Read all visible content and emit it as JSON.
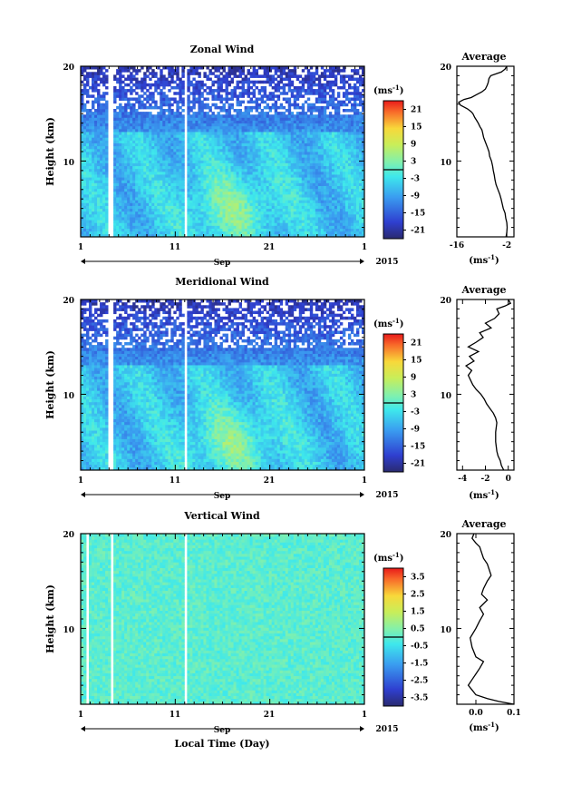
{
  "x_axis": {
    "ticks": [
      "1",
      "11",
      "21",
      "1"
    ],
    "tick_days": [
      1,
      11,
      21,
      31
    ],
    "month": "Sep",
    "year": "2015",
    "label": "Local Time (Day)"
  },
  "y_axis": {
    "label": "Height (km)",
    "range_km": [
      2,
      20
    ],
    "tick_labels": [
      "20",
      "10"
    ]
  },
  "unit_label": "(ms",
  "unit_exp": "-1",
  "unit_close": ")",
  "avg_title": "Average",
  "chart_data": [
    {
      "type": "heatmap",
      "title": "Zonal Wind",
      "x_range_days": [
        1,
        31
      ],
      "y_range_km": [
        2,
        20
      ],
      "colorbar": {
        "range": [
          -24,
          24
        ],
        "ticks": [
          "21",
          "15",
          "9",
          "3",
          "-3",
          "-9",
          "-15",
          "-21"
        ],
        "tick_values": [
          21,
          15,
          9,
          3,
          -3,
          -9,
          -15,
          -21
        ]
      },
      "data_gaps_days": [
        4.0,
        4.3,
        12.0
      ]
    },
    {
      "type": "line",
      "title": "Average",
      "xlim": [
        -16,
        0
      ],
      "x_ticks": [
        "-16",
        "-2"
      ],
      "x_tick_values": [
        -16,
        -2
      ],
      "ylim": [
        2,
        20
      ],
      "y_ticks": [
        "20",
        "10"
      ],
      "x": [
        -2.2,
        -2.0,
        -1.9,
        -2.0,
        -2.3,
        -2.5,
        -3.0,
        -3.3,
        -3.6,
        -4.0,
        -4.5,
        -5.0,
        -5.3,
        -5.5,
        -5.8,
        -6.0,
        -6.3,
        -6.8,
        -7.0,
        -7.5,
        -8.0,
        -8.5,
        -8.8,
        -9.0,
        -9.5,
        -10.0,
        -10.5,
        -11.0,
        -11.5,
        -12.0,
        -13.0,
        -14.0,
        -15.0,
        -15.5,
        -14.0,
        -12.0,
        -10.5,
        -9.0,
        -8.0,
        -7.5,
        -7.2,
        -7.0,
        -6.5,
        -3.5,
        -2.5,
        -2.0
      ],
      "y": [
        2.0,
        2.5,
        3.0,
        3.5,
        4.0,
        4.5,
        5.0,
        5.5,
        6.0,
        6.5,
        7.0,
        7.5,
        8.0,
        8.5,
        9.0,
        9.5,
        10.0,
        10.5,
        11.0,
        11.5,
        12.0,
        12.5,
        13.0,
        13.3,
        13.6,
        14.0,
        14.3,
        14.6,
        15.0,
        15.2,
        15.5,
        15.7,
        15.9,
        16.2,
        16.5,
        16.7,
        17.0,
        17.3,
        17.6,
        18.0,
        18.3,
        18.7,
        19.0,
        19.4,
        19.7,
        20.0
      ]
    },
    {
      "type": "heatmap",
      "title": "Meridional Wind",
      "x_range_days": [
        1,
        31
      ],
      "y_range_km": [
        2,
        20
      ],
      "colorbar": {
        "range": [
          -24,
          24
        ],
        "ticks": [
          "21",
          "15",
          "9",
          "3",
          "-3",
          "-9",
          "-15",
          "-21"
        ],
        "tick_values": [
          21,
          15,
          9,
          3,
          -3,
          -9,
          -15,
          -21
        ]
      },
      "data_gaps_days": [
        4.0,
        4.3,
        12.0
      ]
    },
    {
      "type": "line",
      "title": "Average",
      "xlim": [
        -4.5,
        0.5
      ],
      "x_ticks": [
        "-4",
        "-2",
        "0"
      ],
      "x_tick_values": [
        -4,
        -2,
        0
      ],
      "ylim": [
        2,
        20
      ],
      "y_ticks": [
        "20",
        "10"
      ],
      "x": [
        -0.4,
        -0.6,
        -0.7,
        -0.9,
        -1.0,
        -1.1,
        -1.1,
        -1.0,
        -1.1,
        -1.3,
        -1.6,
        -1.9,
        -2.1,
        -2.4,
        -2.8,
        -3.1,
        -3.3,
        -3.5,
        -3.2,
        -3.7,
        -3.0,
        -3.4,
        -2.6,
        -3.5,
        -2.8,
        -2.2,
        -2.5,
        -1.5,
        -2.0,
        -1.2,
        -0.8,
        -1.0,
        -0.3,
        0.2,
        0.0
      ],
      "y": [
        2.0,
        2.5,
        3.0,
        3.5,
        4.0,
        5.0,
        6.0,
        7.0,
        7.5,
        8.0,
        8.5,
        9.0,
        9.5,
        10.0,
        10.5,
        11.0,
        11.5,
        12.0,
        12.5,
        13.0,
        13.5,
        14.0,
        14.5,
        15.0,
        15.5,
        16.0,
        16.5,
        17.0,
        17.5,
        18.0,
        18.5,
        19.0,
        19.3,
        19.6,
        20.0
      ]
    },
    {
      "type": "heatmap",
      "title": "Vertical Wind",
      "x_range_days": [
        1,
        31
      ],
      "y_range_km": [
        2,
        20
      ],
      "colorbar": {
        "range": [
          -4,
          4
        ],
        "ticks": [
          "3.5",
          "2.5",
          "1.5",
          "0.5",
          "-0.5",
          "-1.5",
          "-2.5",
          "-3.5"
        ],
        "tick_values": [
          3.5,
          2.5,
          1.5,
          0.5,
          -0.5,
          -1.5,
          -2.5,
          -3.5
        ]
      },
      "data_gaps_days": [
        1.8,
        4.3,
        12.0
      ]
    },
    {
      "type": "line",
      "title": "Average",
      "xlim": [
        -0.05,
        0.1
      ],
      "x_ticks": [
        "0.0",
        "0.1"
      ],
      "x_tick_values": [
        0.0,
        0.1
      ],
      "ylim": [
        2,
        20
      ],
      "y_ticks": [
        "20",
        "10"
      ],
      "x": [
        0.1,
        0.06,
        0.03,
        0.0,
        -0.01,
        -0.02,
        -0.01,
        0.0,
        0.01,
        0.02,
        0.0,
        -0.01,
        -0.015,
        0.0,
        0.01,
        0.02,
        0.01,
        0.03,
        0.015,
        0.02,
        0.03,
        0.04,
        0.035,
        0.03,
        0.02,
        0.015,
        0.01,
        0.0,
        -0.01,
        -0.005
      ],
      "y": [
        2.0,
        2.3,
        2.6,
        3.0,
        3.5,
        4.0,
        4.6,
        5.2,
        5.8,
        6.5,
        7.0,
        8.0,
        9.0,
        10.0,
        10.8,
        11.5,
        12.2,
        13.0,
        13.6,
        14.2,
        15.0,
        15.6,
        16.2,
        16.8,
        17.4,
        18.0,
        18.6,
        19.0,
        19.5,
        20.0
      ]
    }
  ]
}
